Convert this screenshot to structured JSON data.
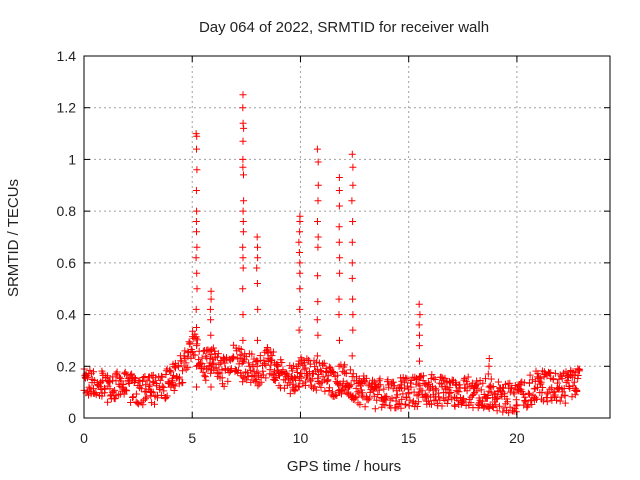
{
  "chart_data": {
    "type": "scatter",
    "title": "Day 064 of 2022, SRMTID for receiver walh",
    "xlabel": "GPS time / hours",
    "ylabel": "SRMTID / TECUs",
    "xlim": [
      0,
      24.3
    ],
    "ylim": [
      0,
      1.4
    ],
    "xticks": [
      0,
      5,
      10,
      15,
      20
    ],
    "xtick_labels": [
      "0",
      "5",
      "10",
      "15",
      "20"
    ],
    "yticks": [
      0,
      0.2,
      0.4,
      0.6,
      0.8,
      1,
      1.2,
      1.4
    ],
    "ytick_labels": [
      "0",
      "0.2",
      "0.4",
      "0.6",
      "0.8",
      "1",
      "1.2",
      "1.4"
    ],
    "grid": true,
    "marker": "+",
    "series_color": "#ff0000",
    "series": [
      {
        "name": "SRMTID",
        "spikes": [
          {
            "x": 5.2,
            "y": [
              0.12,
              0.2,
              0.28,
              0.35,
              0.42,
              0.5,
              0.56,
              0.62,
              0.66,
              0.72,
              0.76,
              0.8,
              0.88,
              0.96,
              1.04,
              1.09,
              1.1
            ]
          },
          {
            "x": 5.85,
            "y": [
              0.12,
              0.2,
              0.26,
              0.32,
              0.38,
              0.42,
              0.46,
              0.49
            ]
          },
          {
            "x": 7.35,
            "y": [
              0.14,
              0.22,
              0.3,
              0.4,
              0.5,
              0.58,
              0.62,
              0.66,
              0.72,
              0.76,
              0.8,
              0.84,
              0.94,
              0.97,
              1.0,
              1.07,
              1.12,
              1.14,
              1.2,
              1.25
            ]
          },
          {
            "x": 8.0,
            "y": [
              0.2,
              0.3,
              0.42,
              0.52,
              0.58,
              0.62,
              0.66,
              0.7
            ]
          },
          {
            "x": 9.95,
            "y": [
              0.12,
              0.22,
              0.34,
              0.42,
              0.5,
              0.56,
              0.6,
              0.64,
              0.68,
              0.72,
              0.76,
              0.78
            ]
          },
          {
            "x": 10.8,
            "y": [
              0.14,
              0.24,
              0.32,
              0.38,
              0.45,
              0.55,
              0.66,
              0.7,
              0.76,
              0.84,
              0.9,
              0.99,
              1.04
            ]
          },
          {
            "x": 11.8,
            "y": [
              0.1,
              0.2,
              0.3,
              0.4,
              0.46,
              0.56,
              0.62,
              0.68,
              0.74,
              0.82,
              0.88,
              0.93
            ]
          },
          {
            "x": 12.4,
            "y": [
              0.08,
              0.16,
              0.24,
              0.34,
              0.4,
              0.46,
              0.54,
              0.6,
              0.68,
              0.76,
              0.84,
              0.9,
              0.97,
              1.02
            ]
          },
          {
            "x": 15.5,
            "y": [
              0.1,
              0.16,
              0.22,
              0.28,
              0.32,
              0.36,
              0.4,
              0.44
            ]
          },
          {
            "x": 18.7,
            "y": [
              0.12,
              0.17,
              0.2,
              0.23
            ]
          }
        ],
        "baseline": [
          {
            "x": 0,
            "y": 0.13
          },
          {
            "x": 1,
            "y": 0.12
          },
          {
            "x": 2,
            "y": 0.12
          },
          {
            "x": 3,
            "y": 0.1
          },
          {
            "x": 4,
            "y": 0.14
          },
          {
            "x": 4.6,
            "y": 0.2
          },
          {
            "x": 5,
            "y": 0.3
          },
          {
            "x": 5.5,
            "y": 0.2
          },
          {
            "x": 6,
            "y": 0.22
          },
          {
            "x": 6.5,
            "y": 0.18
          },
          {
            "x": 7,
            "y": 0.24
          },
          {
            "x": 7.5,
            "y": 0.2
          },
          {
            "x": 8,
            "y": 0.18
          },
          {
            "x": 8.5,
            "y": 0.22
          },
          {
            "x": 9,
            "y": 0.18
          },
          {
            "x": 9.5,
            "y": 0.15
          },
          {
            "x": 10,
            "y": 0.18
          },
          {
            "x": 10.5,
            "y": 0.17
          },
          {
            "x": 11,
            "y": 0.16
          },
          {
            "x": 11.5,
            "y": 0.14
          },
          {
            "x": 12,
            "y": 0.15
          },
          {
            "x": 12.5,
            "y": 0.12
          },
          {
            "x": 13,
            "y": 0.1
          },
          {
            "x": 14,
            "y": 0.09
          },
          {
            "x": 15,
            "y": 0.1
          },
          {
            "x": 16,
            "y": 0.11
          },
          {
            "x": 17,
            "y": 0.1
          },
          {
            "x": 18,
            "y": 0.1
          },
          {
            "x": 19,
            "y": 0.09
          },
          {
            "x": 20,
            "y": 0.07
          },
          {
            "x": 21,
            "y": 0.13
          },
          {
            "x": 22,
            "y": 0.11
          },
          {
            "x": 22.9,
            "y": 0.14
          }
        ],
        "x_range": [
          0,
          22.9
        ]
      }
    ]
  }
}
